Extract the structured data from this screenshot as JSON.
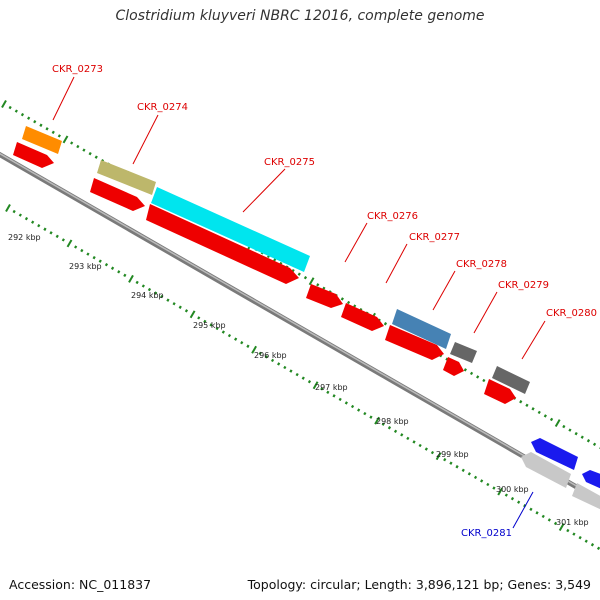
{
  "title": "Clostridium kluyveri NBRC 12016, complete genome",
  "footer": {
    "accession": "Accession: NC_011837",
    "summary": "Topology: circular; Length: 3,896,121 bp; Genes: 3,549"
  },
  "colors": {
    "forward_label": "#dd0000",
    "reverse_label": "#0000cc",
    "tick": "#228822",
    "backbone": "#888888"
  },
  "scale_labels": [
    "292 kbp",
    "293 kbp",
    "294 kbp",
    "295 kbp",
    "296 kbp",
    "297 kbp",
    "298 kbp",
    "299 kbp",
    "300 kbp",
    "301 kbp"
  ],
  "genes": [
    {
      "id": "CKR_0273",
      "color": "#ff8c00",
      "strand": "forward"
    },
    {
      "id": "CKR_0274",
      "color": "#bdb76b",
      "strand": "forward"
    },
    {
      "id": "CKR_0275",
      "color": "#00e5ee",
      "strand": "forward"
    },
    {
      "id": "CKR_0276",
      "color": "#ee0000",
      "strand": "forward"
    },
    {
      "id": "CKR_0277",
      "color": "#4682b4",
      "strand": "forward"
    },
    {
      "id": "CKR_0278",
      "color": "#666666",
      "strand": "forward"
    },
    {
      "id": "CKR_0279",
      "color": "#ee0000",
      "strand": "forward"
    },
    {
      "id": "CKR_0280",
      "color": "#666666",
      "strand": "forward"
    },
    {
      "id": "CKR_0281",
      "color": "#c8c8c8",
      "strand": "reverse"
    }
  ]
}
